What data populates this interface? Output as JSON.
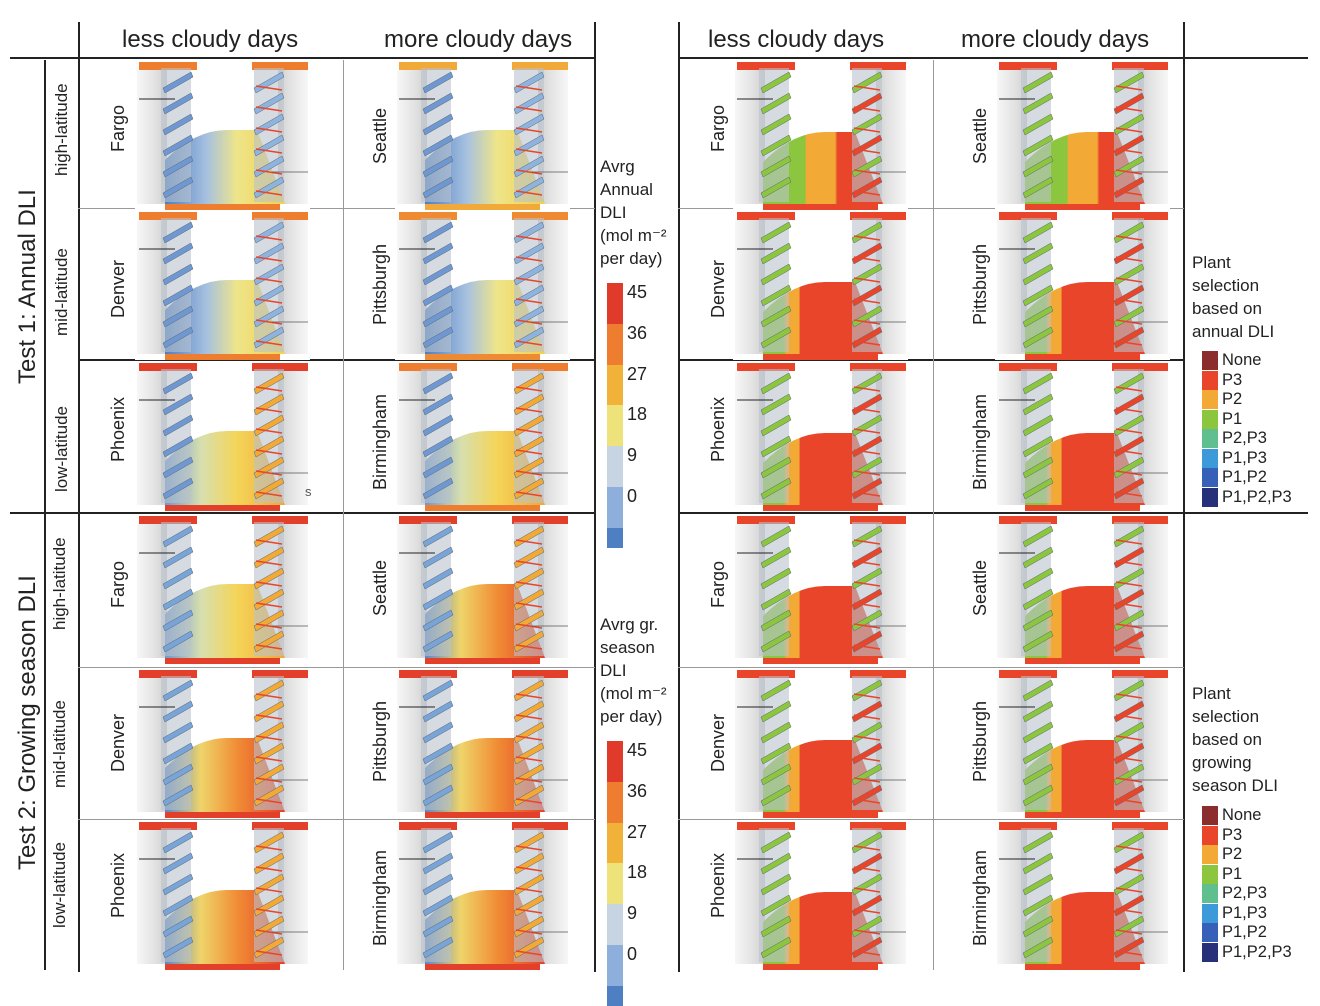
{
  "column_headers": [
    {
      "label": "less cloudy days"
    },
    {
      "label": "more cloudy days"
    },
    {
      "label": "less cloudy days"
    },
    {
      "label": "more cloudy days"
    }
  ],
  "tests": [
    {
      "label": "Test 1: Annual DLI",
      "latitudes": [
        {
          "label": "high-latitude",
          "cities": [
            "Fargo",
            "Seattle"
          ]
        },
        {
          "label": "mid-latitude",
          "cities": [
            "Denver",
            "Pittsburgh"
          ]
        },
        {
          "label": "low-latitude",
          "cities": [
            "Phoenix",
            "Birmingham"
          ]
        }
      ]
    },
    {
      "label": "Test 2: Growing season DLI",
      "latitudes": [
        {
          "label": "high-latitude",
          "cities": [
            "Fargo",
            "Seattle"
          ]
        },
        {
          "label": "mid-latitude",
          "cities": [
            "Denver",
            "Pittsburgh"
          ]
        },
        {
          "label": "low-latitude",
          "cities": [
            "Phoenix",
            "Birmingham"
          ]
        }
      ]
    }
  ],
  "dli_legends": [
    {
      "title_lines": [
        "Avrg",
        "Annual",
        "DLI",
        "(mol m⁻²",
        "per day)"
      ]
    },
    {
      "title_lines": [
        "Avrg gr.",
        "season",
        "DLI",
        "(mol m⁻²",
        "per day)"
      ]
    }
  ],
  "dli_scale": {
    "ticks": [
      "45",
      "36",
      "27",
      "18",
      "9",
      "0"
    ],
    "colors": [
      "#e03a2a",
      "#ee7d30",
      "#f1b23a",
      "#eee27a",
      "#c7d5e3",
      "#8eaedb",
      "#4f7fc3"
    ]
  },
  "plant_legends": [
    {
      "title_lines": [
        "Plant",
        "selection",
        "based on",
        "annual DLI"
      ]
    },
    {
      "title_lines": [
        "Plant",
        "selection",
        "based on",
        "growing",
        "season DLI"
      ]
    }
  ],
  "plant_categories": [
    {
      "label": "None",
      "color": "#8c2d2d"
    },
    {
      "label": "P3",
      "color": "#e8452a"
    },
    {
      "label": "P2",
      "color": "#f2a935"
    },
    {
      "label": "P1",
      "color": "#8cc63f"
    },
    {
      "label": "P2,P3",
      "color": "#5fbf8f"
    },
    {
      "label": "P1,P3",
      "color": "#3d9ad8"
    },
    {
      "label": "P1,P2",
      "color": "#3760b8"
    },
    {
      "label": "P1,P2,P3",
      "color": "#27317a"
    }
  ],
  "stray_mark": "s"
}
